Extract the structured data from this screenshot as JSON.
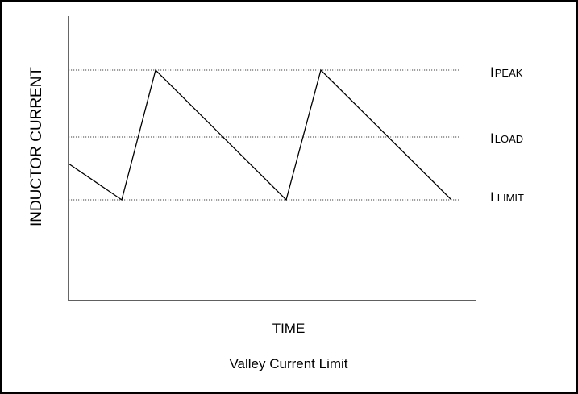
{
  "diagram": {
    "y_axis_label": "INDUCTOR CURRENT",
    "x_axis_label": "TIME",
    "caption": "Valley Current Limit",
    "levels": [
      {
        "main": "I",
        "sub": "PEAK"
      },
      {
        "main": "I",
        "sub": "LOAD"
      },
      {
        "main": "I",
        "sub": "LIMIT"
      }
    ],
    "colors": {
      "line": "#000000",
      "border": "#000000",
      "background": "#ffffff"
    }
  }
}
